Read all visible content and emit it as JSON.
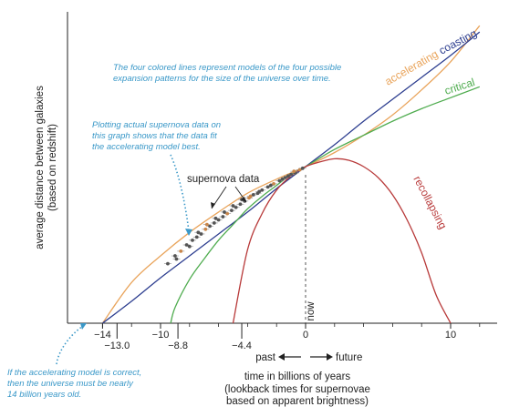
{
  "chart_data": {
    "type": "line",
    "title": "",
    "xlabel": "time in billions of years",
    "xlabel_sub": [
      "(lookback times for supernovae",
      "based on apparent brightness)"
    ],
    "ylabel": "average distance between galaxies",
    "ylabel_sub": "(based on redshift)",
    "xlim": [
      -15,
      13
    ],
    "ylim": [
      0,
      1.9
    ],
    "grid": false,
    "x_ticks": [
      -14,
      -13.0,
      -10,
      -8.8,
      -4.4,
      0,
      10
    ],
    "x_tick_labels": [
      "−14",
      "−13.0",
      "−10",
      "−8.8",
      "−4.4",
      "0",
      "10"
    ],
    "now_label": "now",
    "past_label": "past",
    "future_label": "future",
    "series": [
      {
        "name": "accelerating",
        "color": "#e9a45b",
        "x": [
          -14,
          -12,
          -10,
          -8,
          -6,
          -4,
          -2,
          0,
          2,
          4,
          6,
          8,
          10,
          12
        ],
        "y": [
          0.0,
          0.26,
          0.43,
          0.58,
          0.71,
          0.83,
          0.92,
          1.0,
          1.09,
          1.2,
          1.33,
          1.49,
          1.67,
          1.9
        ]
      },
      {
        "name": "coasting",
        "color": "#2c3d8f",
        "x": [
          -14,
          -12,
          -10,
          -8,
          -6,
          -4,
          -2,
          0,
          2,
          4,
          6,
          8,
          10,
          12
        ],
        "y": [
          0.0,
          0.14,
          0.29,
          0.43,
          0.57,
          0.71,
          0.86,
          1.0,
          1.14,
          1.29,
          1.43,
          1.57,
          1.71,
          1.86
        ]
      },
      {
        "name": "critical",
        "color": "#4fac4f",
        "x": [
          -9.3,
          -9,
          -8,
          -7,
          -6,
          -5,
          -4,
          -3,
          -2,
          -1,
          0,
          2,
          4,
          6,
          8,
          10,
          12
        ],
        "y": [
          0.0,
          0.1,
          0.28,
          0.41,
          0.53,
          0.63,
          0.73,
          0.81,
          0.88,
          0.95,
          1.0,
          1.11,
          1.2,
          1.29,
          1.37,
          1.44,
          1.51
        ]
      },
      {
        "name": "recollapsing",
        "color": "#b83a3a",
        "x": [
          -5,
          -4,
          -3,
          -2,
          -1,
          0,
          1,
          2,
          3,
          4,
          5,
          6,
          7,
          8,
          9,
          10
        ],
        "y": [
          0.0,
          0.47,
          0.7,
          0.85,
          0.94,
          1.0,
          1.03,
          1.05,
          1.04,
          1.0,
          0.93,
          0.82,
          0.66,
          0.45,
          0.18,
          0.0
        ]
      }
    ],
    "supernova_label": "supernova data",
    "supernova_data": {
      "x": [
        -9.5,
        -9.0,
        -8.6,
        -8.2,
        -7.8,
        -7.5,
        -7.2,
        -6.9,
        -6.6,
        -6.3,
        -6.0,
        -5.7,
        -5.4,
        -5.1,
        -4.8,
        -4.5,
        -4.2,
        -3.9,
        -3.6,
        -3.3,
        -3.0,
        -2.6,
        -2.2,
        -1.8,
        -1.4,
        -1.0,
        -0.7,
        -0.4,
        -0.2,
        -8.9,
        -8.0,
        -7.4,
        -6.8,
        -6.2,
        -5.6,
        -5.0,
        -4.4,
        -3.8,
        -3.2,
        -2.4,
        -1.6,
        -1.2,
        -0.8
      ],
      "y": [
        0.38,
        0.43,
        0.46,
        0.5,
        0.53,
        0.55,
        0.57,
        0.6,
        0.62,
        0.64,
        0.66,
        0.68,
        0.7,
        0.72,
        0.74,
        0.76,
        0.78,
        0.8,
        0.82,
        0.83,
        0.85,
        0.87,
        0.89,
        0.91,
        0.93,
        0.95,
        0.96,
        0.98,
        0.99,
        0.41,
        0.49,
        0.58,
        0.63,
        0.67,
        0.71,
        0.75,
        0.79,
        0.81,
        0.84,
        0.88,
        0.92,
        0.94,
        0.97
      ]
    },
    "annotations": [
      "The four colored lines represent models of the four possible",
      "expansion patterns for the size of the universe over time.",
      "Plotting actual supernova data on",
      "this graph shows that the data fit",
      "the accelerating model best.",
      "If the accelerating model is correct,",
      "then the universe must be nearly",
      "14 billion years old."
    ],
    "colors": {
      "annotation": "#3a98c8",
      "axis": "#222222",
      "supernova": "#555555",
      "supernova_highlight": "#c9864a"
    }
  }
}
